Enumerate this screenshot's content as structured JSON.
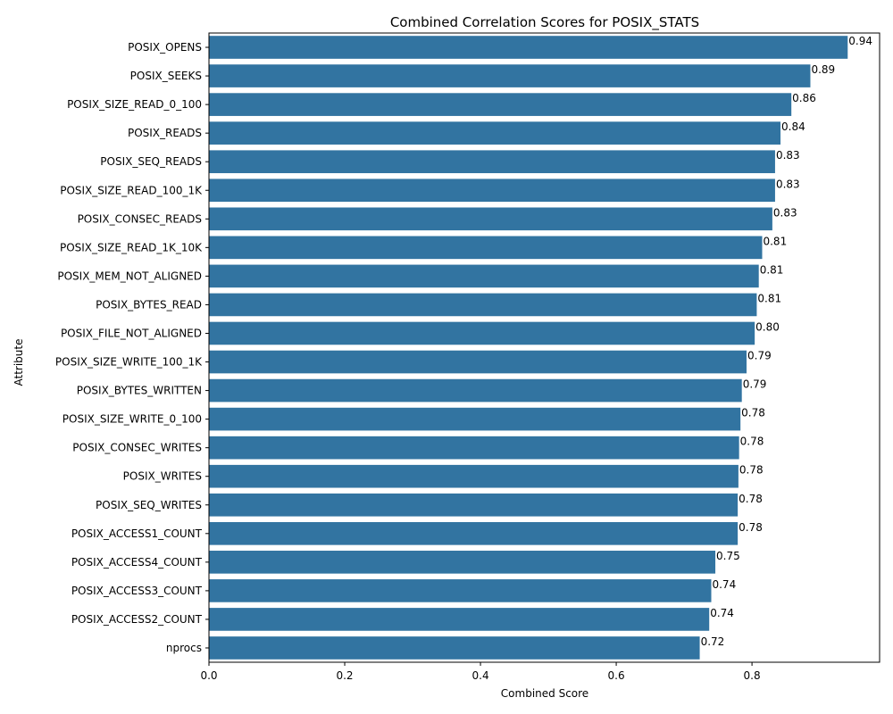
{
  "chart_data": {
    "type": "bar",
    "orientation": "horizontal",
    "title": "Combined Correlation Scores for POSIX_STATS",
    "xlabel": "Combined Score",
    "ylabel": "Attribute",
    "xlim": [
      0,
      0.988
    ],
    "xticks": [
      0,
      0.2,
      0.4,
      0.6,
      0.8
    ],
    "xtick_labels": [
      "0.0",
      "0.2",
      "0.4",
      "0.6",
      "0.8"
    ],
    "bar_color": "#3274a1",
    "grid": false,
    "categories": [
      "POSIX_OPENS",
      "POSIX_SEEKS",
      "POSIX_SIZE_READ_0_100",
      "POSIX_READS",
      "POSIX_SEQ_READS",
      "POSIX_SIZE_READ_100_1K",
      "POSIX_CONSEC_READS",
      "POSIX_SIZE_READ_1K_10K",
      "POSIX_MEM_NOT_ALIGNED",
      "POSIX_BYTES_READ",
      "POSIX_FILE_NOT_ALIGNED",
      "POSIX_SIZE_WRITE_100_1K",
      "POSIX_BYTES_WRITTEN",
      "POSIX_SIZE_WRITE_0_100",
      "POSIX_CONSEC_WRITES",
      "POSIX_WRITES",
      "POSIX_SEQ_WRITES",
      "POSIX_ACCESS1_COUNT",
      "POSIX_ACCESS4_COUNT",
      "POSIX_ACCESS3_COUNT",
      "POSIX_ACCESS2_COUNT",
      "nprocs"
    ],
    "values": [
      0.941,
      0.886,
      0.858,
      0.842,
      0.834,
      0.834,
      0.83,
      0.815,
      0.81,
      0.807,
      0.804,
      0.792,
      0.785,
      0.783,
      0.781,
      0.78,
      0.779,
      0.779,
      0.746,
      0.74,
      0.737,
      0.723
    ],
    "data_labels": [
      "0.94",
      "0.89",
      "0.86",
      "0.84",
      "0.83",
      "0.83",
      "0.83",
      "0.81",
      "0.81",
      "0.81",
      "0.80",
      "0.79",
      "0.79",
      "0.78",
      "0.78",
      "0.78",
      "0.78",
      "0.78",
      "0.75",
      "0.74",
      "0.74",
      "0.72"
    ]
  }
}
